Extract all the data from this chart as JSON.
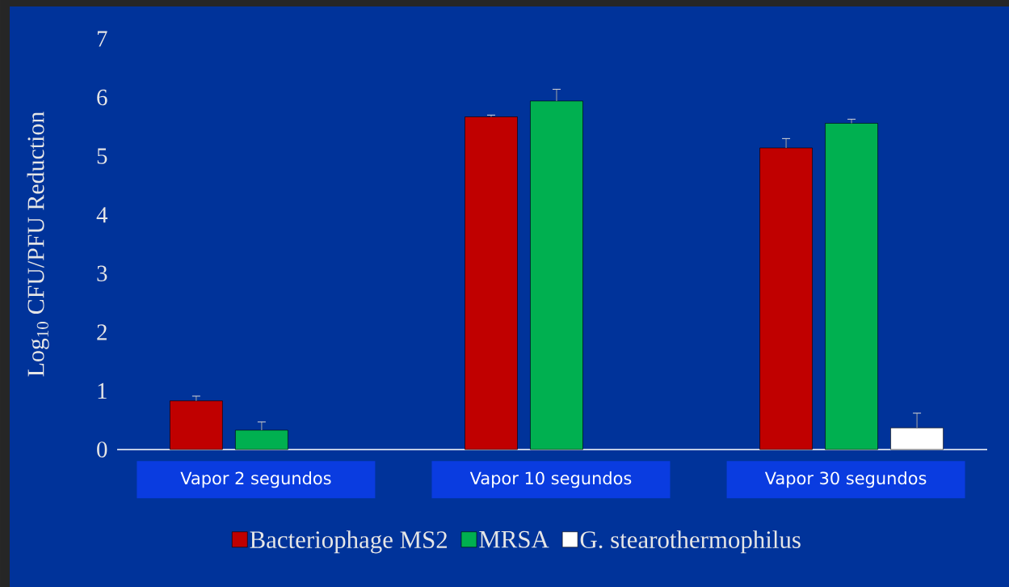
{
  "chart_data": {
    "type": "bar",
    "ylabel": "Log$_{10}$ CFU/PFU Reduction",
    "categories": [
      "Vapor 2 segundos",
      "Vapor 10 segundos",
      "Vapor 30 segundos"
    ],
    "ylim": [
      0,
      7
    ],
    "yticks": [
      0,
      1,
      2,
      3,
      4,
      5,
      6,
      7
    ],
    "grid": false,
    "legend": "bottom",
    "series": [
      {
        "name": "Bacteriophage MS2",
        "color": "#c00000",
        "values": [
          0.83,
          5.67,
          5.14
        ],
        "errors": [
          0.08,
          0.03,
          0.16
        ]
      },
      {
        "name": "MRSA",
        "color": "#00b050",
        "values": [
          0.33,
          5.94,
          5.56
        ],
        "errors": [
          0.14,
          0.2,
          0.07
        ]
      },
      {
        "name": "G. stearothermophilus",
        "color": "#ffffff",
        "values": [
          null,
          null,
          0.37
        ],
        "errors": [
          null,
          null,
          0.25
        ]
      }
    ]
  }
}
